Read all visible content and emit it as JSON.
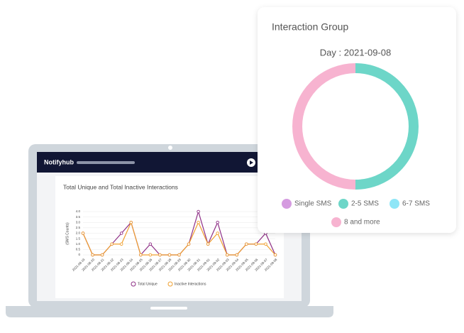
{
  "app": {
    "brand": "Notifyhub"
  },
  "chart_data": [
    {
      "type": "line",
      "title": "Total Unique and Total Inactive Interactions",
      "y_label": "(SMS Counts)",
      "categories": [
        "2021-08-19",
        "2021-08-20",
        "2021-08-21",
        "2021-08-22",
        "2021-08-23",
        "2021-08-24",
        "2021-08-25",
        "2021-08-26",
        "2021-08-27",
        "2021-08-28",
        "2021-08-29",
        "2021-08-30",
        "2021-08-31",
        "2021-09-01",
        "2021-09-02",
        "2021-09-03",
        "2021-09-04",
        "2021-09-05",
        "2021-09-06",
        "2021-09-07",
        "2021-09-08"
      ],
      "series": [
        {
          "name": "Total Unique",
          "color": "#8e2f86",
          "values": [
            2,
            0,
            0,
            1,
            2,
            3,
            0,
            1,
            0,
            0,
            0,
            1,
            4,
            1,
            3,
            0,
            0,
            1,
            1,
            2,
            0
          ]
        },
        {
          "name": "Inactive Interactions",
          "color": "#f0a030",
          "values": [
            2,
            0,
            0,
            1,
            1,
            3,
            0,
            0,
            0,
            0,
            0,
            1,
            3,
            1,
            2,
            0,
            0,
            1,
            1,
            1,
            0
          ]
        }
      ],
      "ylim": [
        0,
        4
      ],
      "yticks": [
        0,
        0.5,
        {
          "value": 1,
          "label": "1.0"
        },
        1.5,
        {
          "value": 2,
          "label": "2.0"
        },
        2.5,
        {
          "value": 3,
          "label": "3.0"
        },
        3.5,
        {
          "value": 4,
          "label": "4.0"
        }
      ],
      "grid": true
    },
    {
      "type": "donut",
      "title": "Interaction Group",
      "subtitle": "Day : 2021-09-08",
      "categories": [
        "Single SMS",
        "2-5 SMS",
        "6-7 SMS",
        "8 and more"
      ],
      "values": [
        0,
        50,
        0,
        50
      ],
      "colors": [
        "#d59be0",
        "#6dd6c8",
        "#8ee6f7",
        "#f7b3d0"
      ]
    }
  ]
}
